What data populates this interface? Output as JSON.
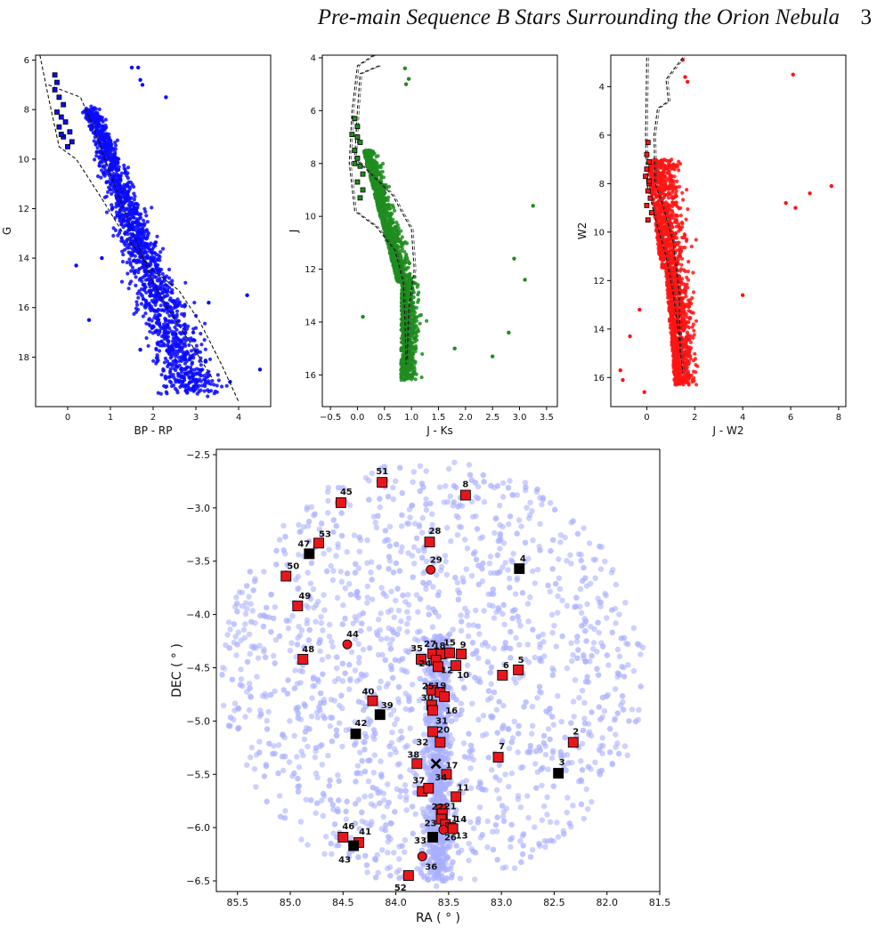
{
  "page": {
    "running_title": "Pre-main Sequence B Stars Surrounding the Orion Nebula",
    "page_number": "3"
  },
  "colors": {
    "panel1": "#0a0aff",
    "panel2": "#1e8c1e",
    "panel3": "#ff1414",
    "background_stars": "#a8b0ff",
    "marker_fill": "#e8161b",
    "marker_black": "#000000"
  },
  "chart_data": [
    {
      "type": "scatter",
      "xlabel": "BP - RP",
      "ylabel": "G",
      "xlim": [
        -0.75,
        4.75
      ],
      "ylim": [
        20.0,
        5.8
      ],
      "y_inverted": true,
      "xticks": [
        "0",
        "1",
        "2",
        "3",
        "4"
      ],
      "yticks": [
        "6",
        "8",
        "10",
        "12",
        "14",
        "16",
        "18"
      ],
      "series": [
        {
          "values": [
            [
              1.5,
              6.3
            ],
            [
              1.65,
              6.3
            ],
            [
              1.7,
              6.8
            ],
            [
              1.75,
              7.0
            ],
            [
              2.3,
              7.5
            ],
            [
              0.8,
              14.0
            ],
            [
              0.2,
              14.3
            ],
            [
              0.5,
              16.5
            ],
            [
              1.7,
              17.7
            ],
            [
              4.2,
              15.5
            ],
            [
              4.5,
              18.5
            ],
            [
              3.8,
              19.0
            ],
            [
              3.3,
              15.8
            ]
          ]
        }
      ],
      "isochrones": [
        {
          "name": "",
          "values": [
            [
              -0.65,
              5.8
            ],
            [
              -0.45,
              7.5
            ],
            [
              -0.2,
              9.5
            ],
            [
              0.2,
              10.0
            ],
            [
              0.8,
              11.6
            ],
            [
              1.3,
              13.0
            ],
            [
              2.0,
              14.5
            ],
            [
              2.6,
              15.3
            ],
            [
              3.1,
              16.6
            ],
            [
              3.6,
              18.3
            ],
            [
              4.0,
              19.8
            ]
          ]
        },
        {
          "name": "",
          "values": [
            [
              -0.45,
              7.0
            ],
            [
              0.3,
              7.5
            ],
            [
              0.6,
              8.7
            ],
            [
              1.0,
              10.6
            ],
            [
              1.4,
              12.4
            ],
            [
              1.7,
              13.7
            ],
            [
              2.0,
              15.0
            ],
            [
              2.4,
              16.2
            ],
            [
              2.9,
              17.5
            ],
            [
              3.4,
              18.9
            ]
          ]
        }
      ]
    },
    {
      "type": "scatter",
      "xlabel": "J - Ks",
      "ylabel": "J",
      "xlim": [
        -0.65,
        3.7
      ],
      "ylim": [
        17.2,
        3.9
      ],
      "y_inverted": true,
      "xticks": [
        "−0.5",
        "0.0",
        "0.5",
        "1.0",
        "1.5",
        "2.0",
        "2.5",
        "3.0",
        "3.5"
      ],
      "yticks": [
        "4",
        "6",
        "8",
        "10",
        "12",
        "14",
        "16"
      ],
      "series": [
        {
          "values": [
            [
              0.88,
              4.4
            ],
            [
              0.95,
              4.8
            ],
            [
              0.9,
              5.0
            ],
            [
              3.25,
              9.6
            ],
            [
              2.9,
              11.6
            ],
            [
              3.1,
              12.4
            ],
            [
              2.8,
              14.4
            ],
            [
              2.5,
              15.3
            ],
            [
              0.1,
              13.8
            ],
            [
              1.8,
              15.0
            ]
          ]
        }
      ],
      "isochrones": [
        {
          "name": "",
          "values": [
            [
              0.3,
              3.9
            ],
            [
              0.0,
              4.3
            ],
            [
              -0.1,
              6.0
            ],
            [
              -0.15,
              8.0
            ],
            [
              -0.05,
              9.8
            ],
            [
              0.35,
              10.4
            ],
            [
              0.7,
              11.3
            ],
            [
              0.85,
              12.5
            ],
            [
              0.88,
              14.0
            ],
            [
              0.9,
              15.6
            ]
          ]
        },
        {
          "name": "",
          "values": [
            [
              0.4,
              4.3
            ],
            [
              0.05,
              4.6
            ],
            [
              0.0,
              6.0
            ],
            [
              -0.05,
              7.8
            ],
            [
              0.3,
              8.5
            ],
            [
              0.65,
              9.2
            ],
            [
              1.0,
              10.5
            ],
            [
              1.05,
              12.0
            ],
            [
              0.95,
              13.5
            ],
            [
              0.92,
              15.4
            ]
          ]
        }
      ]
    },
    {
      "type": "scatter",
      "xlabel": "J - W2",
      "ylabel": "W2",
      "xlim": [
        -1.5,
        8.3
      ],
      "ylim": [
        17.2,
        2.7
      ],
      "y_inverted": true,
      "xticks": [
        "0",
        "2",
        "4",
        "6",
        "8"
      ],
      "yticks": [
        "4",
        "6",
        "8",
        "10",
        "12",
        "14",
        "16"
      ],
      "series": [
        {
          "values": [
            [
              1.5,
              2.9
            ],
            [
              1.6,
              3.6
            ],
            [
              1.7,
              3.8
            ],
            [
              6.1,
              3.5
            ],
            [
              7.7,
              8.1
            ],
            [
              6.8,
              8.4
            ],
            [
              5.8,
              8.8
            ],
            [
              6.2,
              9.0
            ],
            [
              -1.1,
              15.7
            ],
            [
              -1.0,
              16.1
            ],
            [
              -0.7,
              14.3
            ],
            [
              -0.1,
              16.6
            ],
            [
              -0.3,
              13.2
            ],
            [
              4.0,
              12.6
            ]
          ]
        }
      ],
      "isochrones": [
        {
          "name": "",
          "values": [
            [
              0.0,
              2.8
            ],
            [
              -0.05,
              6.0
            ],
            [
              0.0,
              8.0
            ],
            [
              0.4,
              9.6
            ],
            [
              0.8,
              11.0
            ],
            [
              1.1,
              12.5
            ],
            [
              1.3,
              14.0
            ],
            [
              1.5,
              15.8
            ]
          ]
        },
        {
          "name": "",
          "values": [
            [
              1.5,
              2.8
            ],
            [
              0.8,
              3.7
            ],
            [
              0.9,
              4.6
            ],
            [
              0.45,
              4.9
            ],
            [
              0.3,
              6.0
            ],
            [
              0.35,
              8.0
            ],
            [
              0.7,
              9.0
            ],
            [
              1.1,
              10.4
            ],
            [
              1.35,
              12.5
            ],
            [
              1.4,
              15.0
            ]
          ]
        }
      ]
    },
    {
      "type": "scatter",
      "xlabel": "RA ( ° )",
      "ylabel": "DEC ( ° )",
      "xlim": [
        85.7,
        81.5
      ],
      "ylim": [
        -6.6,
        -2.45
      ],
      "x_inverted": true,
      "xticks": [
        "85.5",
        "85.0",
        "84.5",
        "84.0",
        "83.5",
        "83.0",
        "82.5",
        "82.0",
        "81.5"
      ],
      "yticks": [
        "−2.5",
        "−3.0",
        "−3.5",
        "−4.0",
        "−4.5",
        "−5.0",
        "−5.5",
        "−6.0",
        "−6.5"
      ],
      "field_center": [
        83.65,
        -4.55
      ],
      "field_radius_deg": 2.0,
      "center_marker": {
        "ra": 83.62,
        "dec": -5.4,
        "symbol": "x"
      },
      "stars": [
        {
          "id": "51",
          "ra": 84.13,
          "dec": -2.76,
          "dx": 0,
          "dy": -12,
          "shape": "square",
          "color": "red"
        },
        {
          "id": "8",
          "ra": 83.34,
          "dec": -2.88,
          "dx": 0,
          "dy": -12,
          "shape": "square",
          "color": "red"
        },
        {
          "id": "45",
          "ra": 84.52,
          "dec": -2.95,
          "dx": 6,
          "dy": -12,
          "shape": "square",
          "color": "red"
        },
        {
          "id": "28",
          "ra": 83.68,
          "dec": -3.32,
          "dx": 6,
          "dy": -12,
          "shape": "square",
          "color": "red"
        },
        {
          "id": "53",
          "ra": 84.73,
          "dec": -3.33,
          "dx": 7,
          "dy": -10,
          "shape": "square",
          "color": "red"
        },
        {
          "id": "47",
          "ra": 84.82,
          "dec": -3.43,
          "dx": -6,
          "dy": -11,
          "shape": "square",
          "color": "black"
        },
        {
          "id": "4",
          "ra": 82.83,
          "dec": -3.57,
          "dx": 4,
          "dy": -11,
          "shape": "square",
          "color": "black"
        },
        {
          "id": "29",
          "ra": 83.67,
          "dec": -3.58,
          "dx": 6,
          "dy": -11,
          "shape": "circle",
          "color": "red"
        },
        {
          "id": "50",
          "ra": 85.04,
          "dec": -3.64,
          "dx": 8,
          "dy": -11,
          "shape": "square",
          "color": "red"
        },
        {
          "id": "49",
          "ra": 84.93,
          "dec": -3.92,
          "dx": 8,
          "dy": -11,
          "shape": "square",
          "color": "red"
        },
        {
          "id": "44",
          "ra": 84.46,
          "dec": -4.28,
          "dx": 6,
          "dy": -11,
          "shape": "circle",
          "color": "red"
        },
        {
          "id": "48",
          "ra": 84.88,
          "dec": -4.42,
          "dx": 6,
          "dy": -11,
          "shape": "square",
          "color": "red"
        },
        {
          "id": "35",
          "ra": 83.76,
          "dec": -4.42,
          "dx": -5,
          "dy": -12,
          "shape": "square",
          "color": "red"
        },
        {
          "id": "27",
          "ra": 83.65,
          "dec": -4.37,
          "dx": -3,
          "dy": -11,
          "shape": "square",
          "color": "red"
        },
        {
          "id": "18",
          "ra": 83.57,
          "dec": -4.37,
          "dx": -2,
          "dy": -9,
          "shape": "square",
          "color": "red"
        },
        {
          "id": "15",
          "ra": 83.49,
          "dec": -4.36,
          "dx": 0,
          "dy": -11,
          "shape": "square",
          "color": "red"
        },
        {
          "id": "9",
          "ra": 83.38,
          "dec": -4.37,
          "dx": 2,
          "dy": -10,
          "shape": "square",
          "color": "red"
        },
        {
          "id": "24",
          "ra": 83.62,
          "dec": -4.43,
          "dx": -12,
          "dy": 4,
          "shape": "square",
          "color": "red"
        },
        {
          "id": "12",
          "ra": 83.6,
          "dec": -4.49,
          "dx": 10,
          "dy": 4,
          "shape": "square",
          "color": "red"
        },
        {
          "id": "10",
          "ra": 83.43,
          "dec": -4.48,
          "dx": 8,
          "dy": 11,
          "shape": "square",
          "color": "red"
        },
        {
          "id": "6",
          "ra": 82.99,
          "dec": -4.57,
          "dx": 4,
          "dy": -11,
          "shape": "square",
          "color": "red"
        },
        {
          "id": "5",
          "ra": 82.84,
          "dec": -4.52,
          "dx": 3,
          "dy": -11,
          "shape": "square",
          "color": "red"
        },
        {
          "id": "25",
          "ra": 83.66,
          "dec": -4.71,
          "dx": -4,
          "dy": -4,
          "shape": "square",
          "color": "red"
        },
        {
          "id": "19",
          "ra": 83.58,
          "dec": -4.73,
          "dx": 0,
          "dy": -7,
          "shape": "square",
          "color": "red"
        },
        {
          "id": "30",
          "ra": 83.66,
          "dec": -4.85,
          "dx": -5,
          "dy": -8,
          "shape": "square",
          "color": "red"
        },
        {
          "id": "16",
          "ra": 83.54,
          "dec": -4.77,
          "dx": 8,
          "dy": 16,
          "shape": "square",
          "color": "red"
        },
        {
          "id": "40",
          "ra": 84.22,
          "dec": -4.81,
          "dx": -5,
          "dy": -10,
          "shape": "square",
          "color": "red"
        },
        {
          "id": "39",
          "ra": 84.15,
          "dec": -4.94,
          "dx": 8,
          "dy": -10,
          "shape": "square",
          "color": "black"
        },
        {
          "id": "31",
          "ra": 83.65,
          "dec": -4.9,
          "dx": 10,
          "dy": 12,
          "shape": "square",
          "color": "red"
        },
        {
          "id": "42",
          "ra": 84.38,
          "dec": -5.12,
          "dx": 6,
          "dy": -12,
          "shape": "square",
          "color": "black"
        },
        {
          "id": "20",
          "ra": 83.65,
          "dec": -5.1,
          "dx": 12,
          "dy": -2,
          "shape": "square",
          "color": "red"
        },
        {
          "id": "32",
          "ra": 83.58,
          "dec": -5.2,
          "dx": -20,
          "dy": 0,
          "shape": "square",
          "color": "red"
        },
        {
          "id": "2",
          "ra": 82.32,
          "dec": -5.2,
          "dx": 3,
          "dy": -12,
          "shape": "square",
          "color": "red"
        },
        {
          "id": "7",
          "ra": 83.03,
          "dec": -5.34,
          "dx": 4,
          "dy": -12,
          "shape": "square",
          "color": "red"
        },
        {
          "id": "38",
          "ra": 83.8,
          "dec": -5.4,
          "dx": -4,
          "dy": -10,
          "shape": "square",
          "color": "red"
        },
        {
          "id": "17",
          "ra": 83.52,
          "dec": -5.5,
          "dx": 6,
          "dy": -10,
          "shape": "square",
          "color": "red"
        },
        {
          "id": "3",
          "ra": 82.46,
          "dec": -5.49,
          "dx": 4,
          "dy": -12,
          "shape": "square",
          "color": "black"
        },
        {
          "id": "37",
          "ra": 83.75,
          "dec": -5.66,
          "dx": -4,
          "dy": -12,
          "shape": "square",
          "color": "red"
        },
        {
          "id": "34",
          "ra": 83.69,
          "dec": -5.63,
          "dx": 14,
          "dy": -12,
          "shape": "square",
          "color": "red"
        },
        {
          "id": "11",
          "ra": 83.43,
          "dec": -5.71,
          "dx": 8,
          "dy": -10,
          "shape": "square",
          "color": "red"
        },
        {
          "id": "22",
          "ra": 83.57,
          "dec": -5.83,
          "dx": -4,
          "dy": -3,
          "shape": "square",
          "color": "red"
        },
        {
          "id": "21",
          "ra": 83.56,
          "dec": -5.87,
          "dx": 9,
          "dy": -8,
          "shape": "square",
          "color": "red"
        },
        {
          "id": "23",
          "ra": 83.57,
          "dec": -5.92,
          "dx": -12,
          "dy": 5,
          "shape": "square",
          "color": "red"
        },
        {
          "id": "1",
          "ra": 83.53,
          "dec": -5.97,
          "dx": 10,
          "dy": -6,
          "shape": "square",
          "color": "red"
        },
        {
          "id": "14",
          "ra": 83.48,
          "dec": -6.0,
          "dx": 11,
          "dy": -9,
          "shape": "square",
          "color": "red"
        },
        {
          "id": "26",
          "ra": 83.55,
          "dec": -6.02,
          "dx": 8,
          "dy": 9,
          "shape": "circle",
          "color": "red"
        },
        {
          "id": "13",
          "ra": 83.46,
          "dec": -6.01,
          "dx": 10,
          "dy": 8,
          "shape": "square",
          "color": "red"
        },
        {
          "id": "46",
          "ra": 84.5,
          "dec": -6.09,
          "dx": 6,
          "dy": -12,
          "shape": "square",
          "color": "red"
        },
        {
          "id": "41",
          "ra": 84.35,
          "dec": -6.14,
          "dx": 7,
          "dy": -12,
          "shape": "square",
          "color": "red"
        },
        {
          "id": "43",
          "ra": 84.4,
          "dec": -6.17,
          "dx": -10,
          "dy": 16,
          "shape": "square",
          "color": "black"
        },
        {
          "id": "33",
          "ra": 83.65,
          "dec": -6.09,
          "dx": -14,
          "dy": 4,
          "shape": "square",
          "color": "black"
        },
        {
          "id": "36",
          "ra": 83.75,
          "dec": -6.27,
          "dx": 10,
          "dy": 12,
          "shape": "circle",
          "color": "red"
        },
        {
          "id": "52",
          "ra": 83.88,
          "dec": -6.45,
          "dx": -9,
          "dy": 14,
          "shape": "square",
          "color": "red"
        }
      ]
    }
  ]
}
